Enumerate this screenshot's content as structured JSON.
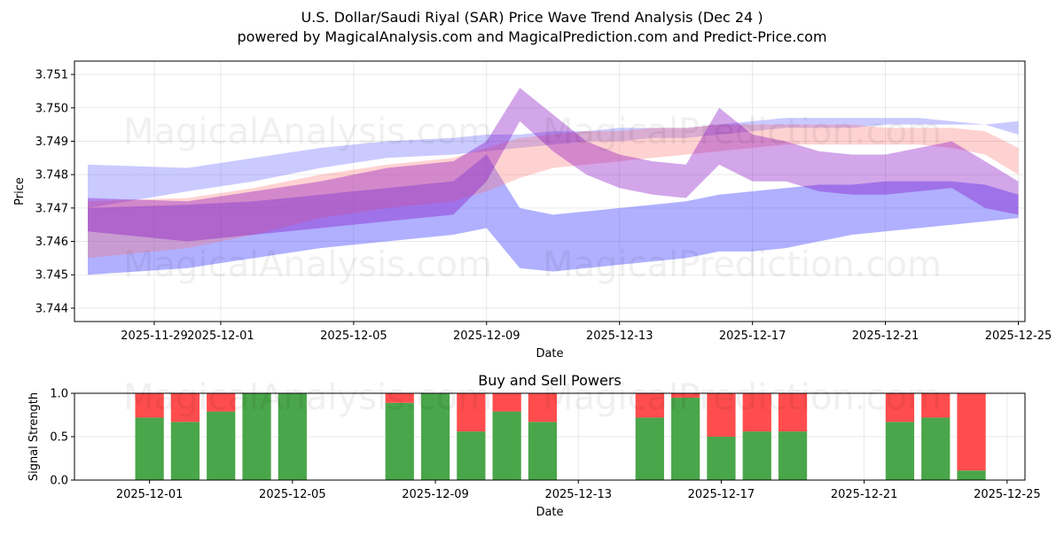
{
  "title": "U.S. Dollar/Saudi Riyal (SAR) Price Wave Trend Analysis (Dec 24 )",
  "subtitle": "powered by MagicalAnalysis.com and MagicalPrediction.com and Predict-Price.com",
  "watermarks": [
    "MagicalAnalysis.com",
    "MagicalPrediction.com"
  ],
  "colors": {
    "buy": "#4aa64a",
    "sell": "#ff4d4d",
    "blue_band": "#5050ff",
    "red_band": "#ff6b6b",
    "purple_band": "#8000c0"
  },
  "chart_data": [
    {
      "type": "area",
      "title": "",
      "xlabel": "Date",
      "ylabel": "Price",
      "x_tick_labels": [
        "2025-11-29",
        "2025-12-01",
        "2025-12-05",
        "2025-12-09",
        "2025-12-13",
        "2025-12-17",
        "2025-12-21",
        "2025-12-25"
      ],
      "x_tick_days": [
        -2,
        0,
        4,
        8,
        12,
        16,
        20,
        24
      ],
      "xlim": [
        -4.4,
        24.2
      ],
      "y_ticks": [
        3.744,
        3.745,
        3.746,
        3.747,
        3.748,
        3.749,
        3.75,
        3.751
      ],
      "y_tick_labels": [
        "3.744",
        "3.745",
        "3.746",
        "3.747",
        "3.748",
        "3.749",
        "3.750",
        "3.751"
      ],
      "ylim": [
        3.7436,
        3.7514
      ],
      "grid": true,
      "x_days": [
        -4,
        -1,
        1,
        3,
        5,
        7,
        8,
        9,
        10,
        11,
        12,
        13,
        14,
        15,
        16,
        17,
        18,
        19,
        20,
        21,
        22,
        23,
        24
      ],
      "series": [
        {
          "name": "blue-upper-band",
          "color": "blue",
          "opacity": 0.3,
          "values_low": [
            3.747,
            3.7475,
            3.7478,
            3.7482,
            3.7485,
            3.7486,
            3.7487,
            3.7488,
            3.7489,
            3.749,
            3.749,
            3.7491,
            3.7491,
            3.7492,
            3.7493,
            3.7494,
            3.7494,
            3.7494,
            3.7495,
            3.7495,
            3.7495,
            3.7495,
            3.7496
          ],
          "values_high": [
            3.7483,
            3.7482,
            3.7485,
            3.7488,
            3.749,
            3.7491,
            3.7492,
            3.7492,
            3.7493,
            3.7493,
            3.7494,
            3.7494,
            3.7494,
            3.7495,
            3.7496,
            3.7497,
            3.7497,
            3.7497,
            3.7497,
            3.7497,
            3.7496,
            3.7495,
            3.7492
          ]
        },
        {
          "name": "blue-lower-band",
          "color": "blue",
          "opacity": 0.45,
          "values_low": [
            3.745,
            3.7452,
            3.7455,
            3.7458,
            3.746,
            3.7462,
            3.7464,
            3.7452,
            3.7451,
            3.7452,
            3.7453,
            3.7454,
            3.7455,
            3.7457,
            3.7457,
            3.7458,
            3.746,
            3.7462,
            3.7463,
            3.7464,
            3.7465,
            3.7466,
            3.7467
          ],
          "values_high": [
            3.747,
            3.7471,
            3.7472,
            3.7474,
            3.7476,
            3.7478,
            3.7486,
            3.747,
            3.7468,
            3.7469,
            3.747,
            3.7471,
            3.7472,
            3.7474,
            3.7475,
            3.7476,
            3.7477,
            3.7477,
            3.7478,
            3.7478,
            3.7478,
            3.7477,
            3.7474
          ]
        },
        {
          "name": "red-band",
          "color": "red",
          "opacity": 0.3,
          "values_low": [
            3.7455,
            3.7458,
            3.7462,
            3.7467,
            3.747,
            3.7472,
            3.7475,
            3.7479,
            3.7482,
            3.7483,
            3.7484,
            3.7485,
            3.7486,
            3.7487,
            3.7488,
            3.7489,
            3.7489,
            3.7489,
            3.7489,
            3.7489,
            3.7488,
            3.7486,
            3.748
          ],
          "values_high": [
            3.7472,
            3.7473,
            3.7476,
            3.748,
            3.7483,
            3.7485,
            3.7488,
            3.7491,
            3.7492,
            3.7493,
            3.7493,
            3.7494,
            3.7494,
            3.7495,
            3.7495,
            3.7495,
            3.7495,
            3.7495,
            3.7494,
            3.7494,
            3.7494,
            3.7493,
            3.7488
          ]
        },
        {
          "name": "purple-wave-band",
          "color": "purple",
          "opacity": 0.35,
          "values_low": [
            3.7463,
            3.746,
            3.7462,
            3.7464,
            3.7466,
            3.7468,
            3.7478,
            3.7496,
            3.7487,
            3.748,
            3.7476,
            3.7474,
            3.7473,
            3.7483,
            3.7478,
            3.7478,
            3.7475,
            3.7474,
            3.7474,
            3.7475,
            3.7476,
            3.747,
            3.7468
          ],
          "values_high": [
            3.7473,
            3.7472,
            3.7475,
            3.7478,
            3.7482,
            3.7484,
            3.749,
            3.7506,
            3.7498,
            3.749,
            3.7486,
            3.7484,
            3.7483,
            3.75,
            3.7492,
            3.749,
            3.7487,
            3.7486,
            3.7486,
            3.7488,
            3.749,
            3.7484,
            3.7478
          ]
        }
      ]
    },
    {
      "type": "bar",
      "title": "Buy and Sell Powers",
      "xlabel": "Date",
      "ylabel": "Signal Strength",
      "x_tick_labels": [
        "2025-12-01",
        "2025-12-05",
        "2025-12-09",
        "2025-12-13",
        "2025-12-17",
        "2025-12-21",
        "2025-12-25"
      ],
      "x_tick_days": [
        0,
        4,
        8,
        12,
        16,
        20,
        24
      ],
      "xlim": [
        -2.1,
        24.5
      ],
      "y_ticks": [
        0.0,
        0.5,
        1.0
      ],
      "y_tick_labels": [
        "0.0",
        "0.5",
        "1.0"
      ],
      "ylim": [
        0,
        1
      ],
      "grid": true,
      "bar_days": [
        0,
        1,
        2,
        3,
        4,
        7,
        8,
        9,
        10,
        11,
        14,
        15,
        16,
        17,
        18,
        21,
        22,
        23
      ],
      "buy_values": [
        0.72,
        0.67,
        0.79,
        1.0,
        1.0,
        0.89,
        1.0,
        0.56,
        0.79,
        0.67,
        0.72,
        0.95,
        0.5,
        0.56,
        0.56,
        0.67,
        0.72,
        0.11
      ],
      "sell_values": [
        0.28,
        0.33,
        0.21,
        0.0,
        0.0,
        0.11,
        0.0,
        0.44,
        0.21,
        0.33,
        0.28,
        0.05,
        0.5,
        0.44,
        0.44,
        0.33,
        0.28,
        0.89
      ]
    }
  ]
}
